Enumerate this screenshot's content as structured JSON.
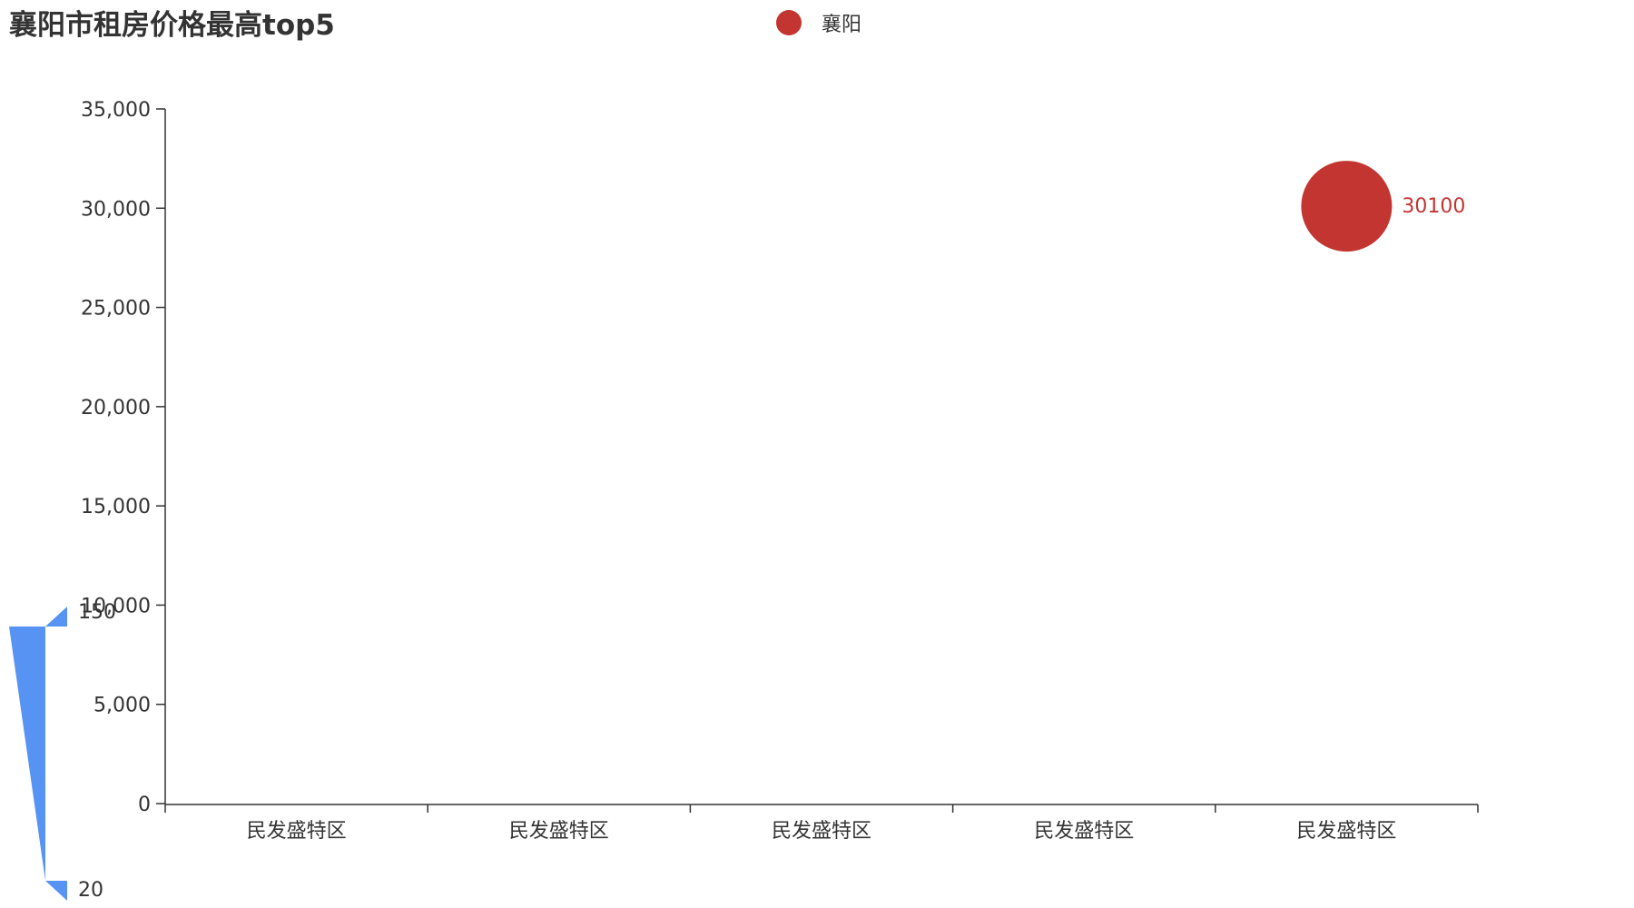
{
  "title": "襄阳市租房价格最高top5",
  "legend": {
    "label": "襄阳",
    "color": "#c23531"
  },
  "visual_map": {
    "max_label": "150",
    "min_label": "20",
    "color": "#5793f3"
  },
  "chart_data": {
    "type": "scatter",
    "title": "襄阳市租房价格最高top5",
    "categories": [
      "民发盛特区",
      "民发盛特区",
      "民发盛特区",
      "民发盛特区",
      "民发盛特区"
    ],
    "series": [
      {
        "name": "襄阳",
        "values": [
          null,
          null,
          null,
          null,
          30100
        ],
        "color": "#c23531",
        "show_labels": true
      }
    ],
    "ylim": [
      0,
      35000
    ],
    "y_ticks": [
      0,
      5000,
      10000,
      15000,
      20000,
      25000,
      30000,
      35000
    ],
    "y_tick_labels": [
      "0",
      "5,000",
      "10,000",
      "15,000",
      "20,000",
      "25,000",
      "30,000",
      "35,000"
    ],
    "grid": false,
    "legend_position": "top-center"
  }
}
